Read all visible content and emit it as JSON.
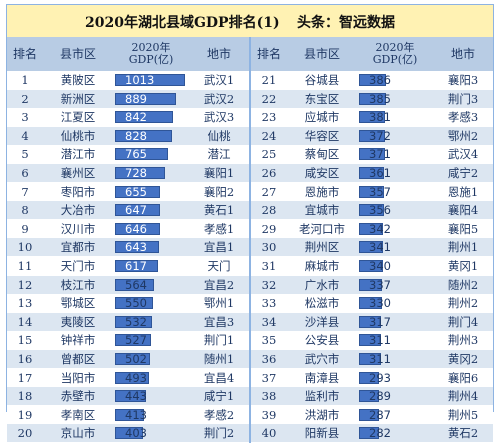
{
  "title": "2020年湖北县域GDP排名(1)",
  "source": "头条：智远数据",
  "headers": {
    "rank": "排名",
    "county": "县市区",
    "gdp_line1": "2020年",
    "gdp_line2": "GDP(亿)",
    "city": "地市"
  },
  "colors": {
    "title_bg": "#fff2b3",
    "header_bg": "#b8cce4",
    "row_odd": "#ffffff",
    "row_even": "#dce6f1",
    "bar": "#4472c4",
    "text": "#1f3864"
  },
  "chart_data": {
    "type": "table",
    "title": "2020年湖北县域GDP排名(1)",
    "columns": [
      "排名",
      "县市区",
      "2020年GDP(亿)",
      "地市"
    ],
    "bar_max": 1013,
    "left_rows": [
      {
        "rank": "1",
        "county": "黄陂区",
        "gdp": 1013,
        "city": "武汉1"
      },
      {
        "rank": "2",
        "county": "新洲区",
        "gdp": 889,
        "city": "武汉2"
      },
      {
        "rank": "3",
        "county": "江夏区",
        "gdp": 842,
        "city": "武汉3"
      },
      {
        "rank": "4",
        "county": "仙桃市",
        "gdp": 828,
        "city": "仙桃"
      },
      {
        "rank": "5",
        "county": "潜江市",
        "gdp": 765,
        "city": "潜江"
      },
      {
        "rank": "6",
        "county": "襄州区",
        "gdp": 728,
        "city": "襄阳1"
      },
      {
        "rank": "7",
        "county": "枣阳市",
        "gdp": 655,
        "city": "襄阳2"
      },
      {
        "rank": "8",
        "county": "大冶市",
        "gdp": 647,
        "city": "黄石1"
      },
      {
        "rank": "9",
        "county": "汉川市",
        "gdp": 646,
        "city": "孝感1"
      },
      {
        "rank": "10",
        "county": "宜都市",
        "gdp": 643,
        "city": "宜昌1"
      },
      {
        "rank": "11",
        "county": "天门市",
        "gdp": 617,
        "city": "天门"
      },
      {
        "rank": "12",
        "county": "枝江市",
        "gdp": 564,
        "city": "宜昌2"
      },
      {
        "rank": "13",
        "county": "鄂城区",
        "gdp": 550,
        "city": "鄂州1"
      },
      {
        "rank": "14",
        "county": "夷陵区",
        "gdp": 532,
        "city": "宜昌3"
      },
      {
        "rank": "15",
        "county": "钟祥市",
        "gdp": 527,
        "city": "荆门1"
      },
      {
        "rank": "16",
        "county": "曾都区",
        "gdp": 502,
        "city": "随州1"
      },
      {
        "rank": "17",
        "county": "当阳市",
        "gdp": 493,
        "city": "宜昌4"
      },
      {
        "rank": "18",
        "county": "赤壁市",
        "gdp": 443,
        "city": "咸宁1"
      },
      {
        "rank": "19",
        "county": "孝南区",
        "gdp": 413,
        "city": "孝感2"
      },
      {
        "rank": "20",
        "county": "京山市",
        "gdp": 403,
        "city": "荆门2"
      }
    ],
    "right_rows": [
      {
        "rank": "21",
        "county": "谷城县",
        "gdp": 386,
        "city": "襄阳3"
      },
      {
        "rank": "22",
        "county": "东宝区",
        "gdp": 385,
        "city": "荆门3"
      },
      {
        "rank": "23",
        "county": "应城市",
        "gdp": 381,
        "city": "孝感3"
      },
      {
        "rank": "24",
        "county": "华容区",
        "gdp": 372,
        "city": "鄂州2"
      },
      {
        "rank": "25",
        "county": "蔡甸区",
        "gdp": 371,
        "city": "武汉4"
      },
      {
        "rank": "26",
        "county": "咸安区",
        "gdp": 361,
        "city": "咸宁2"
      },
      {
        "rank": "27",
        "county": "恩施市",
        "gdp": 357,
        "city": "恩施1"
      },
      {
        "rank": "28",
        "county": "宜城市",
        "gdp": 356,
        "city": "襄阳4"
      },
      {
        "rank": "29",
        "county": "老河口市",
        "gdp": 342,
        "city": "襄阳5"
      },
      {
        "rank": "30",
        "county": "荆州区",
        "gdp": 341,
        "city": "荆州1"
      },
      {
        "rank": "31",
        "county": "麻城市",
        "gdp": 340,
        "city": "黄冈1"
      },
      {
        "rank": "32",
        "county": "广水市",
        "gdp": 337,
        "city": "随州2"
      },
      {
        "rank": "33",
        "county": "松滋市",
        "gdp": 330,
        "city": "荆州2"
      },
      {
        "rank": "34",
        "county": "沙洋县",
        "gdp": 317,
        "city": "荆门4"
      },
      {
        "rank": "35",
        "county": "公安县",
        "gdp": 311,
        "city": "荆州3"
      },
      {
        "rank": "36",
        "county": "武穴市",
        "gdp": 311,
        "city": "黄冈2"
      },
      {
        "rank": "37",
        "county": "南漳县",
        "gdp": 293,
        "city": "襄阳6"
      },
      {
        "rank": "38",
        "county": "监利市",
        "gdp": 289,
        "city": "荆州4"
      },
      {
        "rank": "39",
        "county": "洪湖市",
        "gdp": 287,
        "city": "荆州5"
      },
      {
        "rank": "40",
        "county": "阳新县",
        "gdp": 282,
        "city": "黄石2"
      }
    ]
  }
}
